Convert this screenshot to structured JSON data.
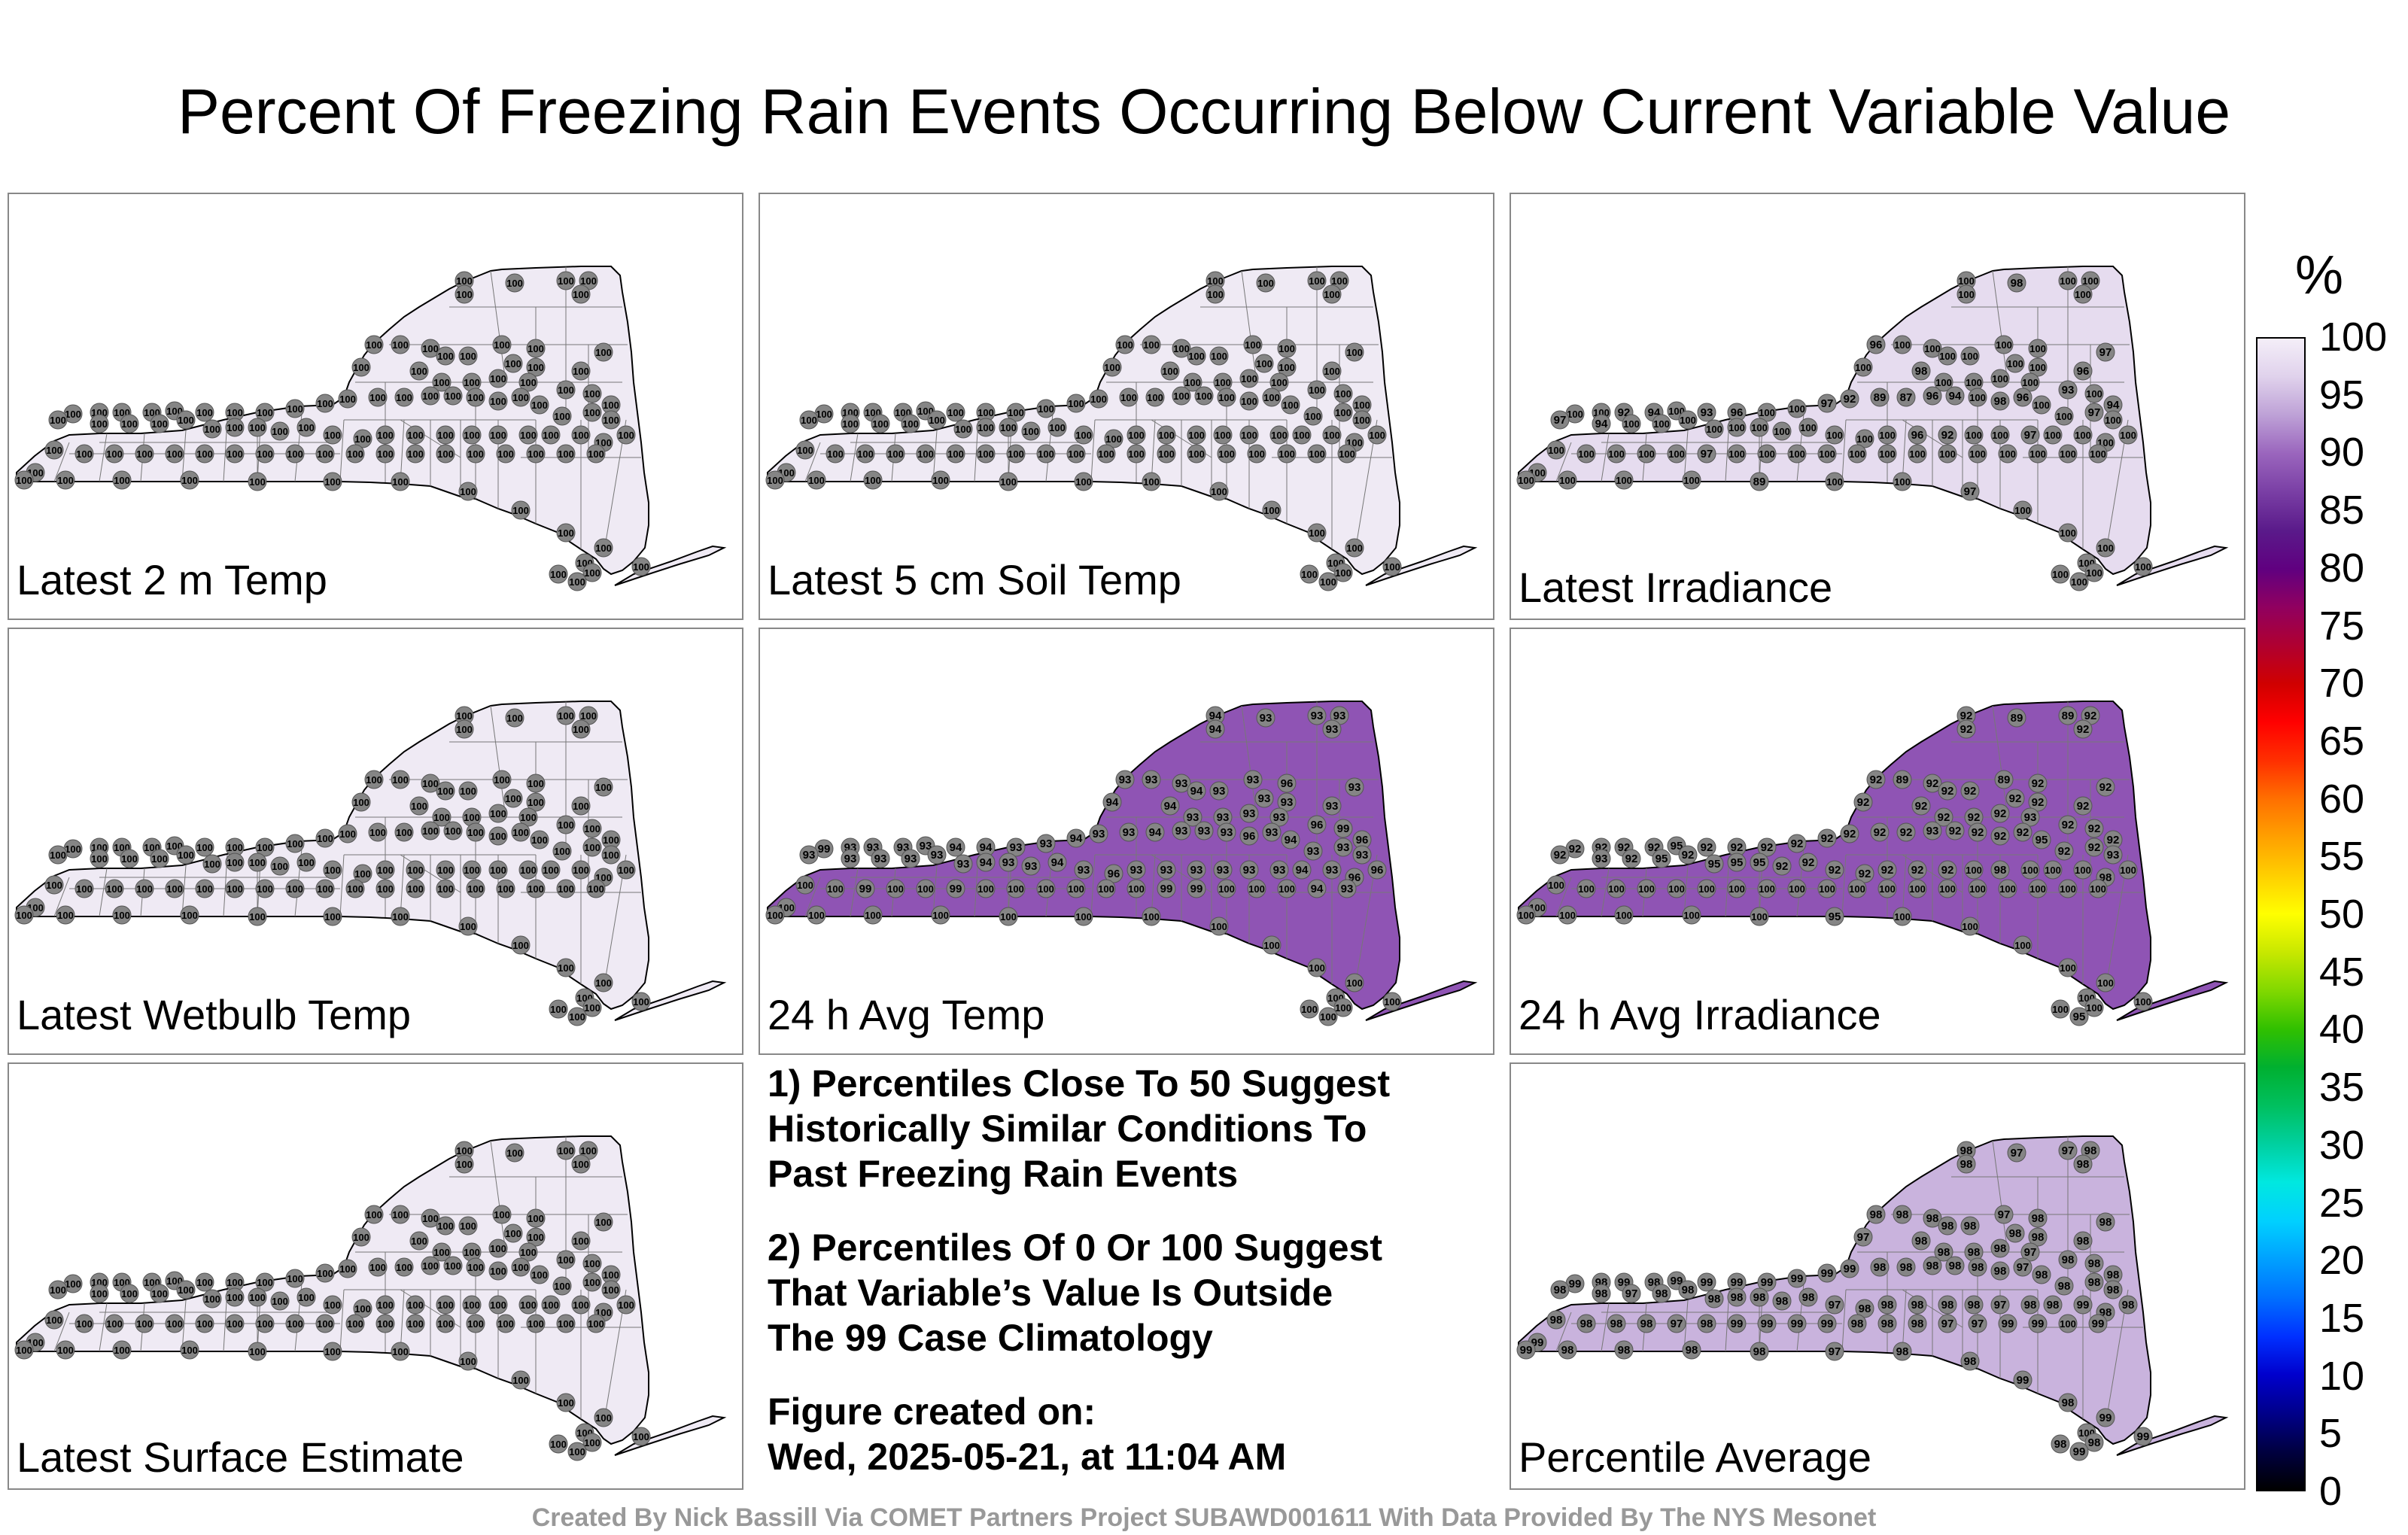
{
  "title": "Percent Of Freezing Rain Events Occurring Below Current Variable Value",
  "panels": [
    {
      "label": "Latest 2 m Temp",
      "fill": "#efeaf4",
      "values": [
        "100",
        "100",
        "100",
        "100",
        "100",
        "100",
        "100",
        "100",
        "100",
        "100",
        "100",
        "100",
        "100",
        "100",
        "100",
        "100",
        "100",
        "100",
        "100",
        "100",
        "100",
        "100",
        "100",
        "100",
        "100",
        "100",
        "100",
        "100",
        "100",
        "100",
        "100",
        "100",
        "100",
        "100",
        "100",
        "100",
        "100",
        "100",
        "100",
        "100",
        "100",
        "100",
        "100",
        "100",
        "100",
        "100",
        "100",
        "100",
        "100",
        "100",
        "100",
        "100",
        "100",
        "100",
        "100",
        "100",
        "100",
        "100",
        "100",
        "100",
        "100",
        "100",
        "100",
        "100",
        "100",
        "100",
        "100",
        "100",
        "100",
        "100",
        "100",
        "100",
        "100",
        "100",
        "100",
        "100",
        "100",
        "100",
        "100",
        "100",
        "100",
        "100",
        "100",
        "100",
        "100",
        "100",
        "100",
        "100",
        "100",
        "100",
        "100",
        "100",
        "100",
        "100",
        "100",
        "100",
        "100",
        "100",
        "100",
        "100",
        "100",
        "100",
        "100",
        "100",
        "100",
        "100"
      ]
    },
    {
      "label": "Latest 5 cm Soil Temp",
      "fill": "#efeaf4",
      "values": [
        "100",
        "100",
        "100",
        "100",
        "100",
        "100",
        "100",
        "100",
        "100",
        "100",
        "100",
        "100",
        "100",
        "100",
        "100",
        "100",
        "100",
        "100",
        "100",
        "100",
        "100",
        "100",
        "100",
        "100",
        "100",
        "100",
        "100",
        "100",
        "100",
        "100",
        "100",
        "100",
        "100",
        "100",
        "100",
        "100",
        "100",
        "100",
        "100",
        "100",
        "100",
        "100",
        "100",
        "100",
        "100",
        "100",
        "100",
        "100",
        "100",
        "100",
        "100",
        "100",
        "100",
        "100",
        "100",
        "100",
        "100",
        "100",
        "100",
        "100",
        "100",
        "100",
        "100",
        "100",
        "100",
        "100",
        "100",
        "100",
        "100",
        "100",
        "100",
        "100",
        "100",
        "100",
        "100",
        "100",
        "100",
        "100",
        "100",
        "100",
        "100",
        "100",
        "100",
        "100",
        "100",
        "100",
        "100",
        "100",
        "100",
        "100",
        "100",
        "100",
        "100",
        "100",
        "100",
        "100",
        "100",
        "100",
        "100",
        "100",
        "100",
        "100",
        "100",
        "100",
        "100",
        "100"
      ]
    },
    {
      "label": "Latest Irradiance",
      "fill": "#e6dcef",
      "values": [
        "100",
        "100",
        "98",
        "100",
        "100",
        "100",
        "100",
        "96",
        "100",
        "100",
        "100",
        "100",
        "100",
        "100",
        "100",
        "100",
        "97",
        "96",
        "98",
        "100",
        "100",
        "100",
        "100",
        "93",
        "100",
        "94",
        "100",
        "97",
        "100",
        "100",
        "96",
        "98",
        "100",
        "94",
        "96",
        "87",
        "89",
        "92",
        "97",
        "100",
        "100",
        "96",
        "93",
        "100",
        "94",
        "92",
        "100",
        "100",
        "97",
        "94",
        "100",
        "100",
        "100",
        "100",
        "100",
        "100",
        "100",
        "100",
        "100",
        "100",
        "100",
        "96",
        "92",
        "100",
        "100",
        "97",
        "100",
        "100",
        "100",
        "100",
        "100",
        "100",
        "100",
        "100",
        "100",
        "100",
        "100",
        "100",
        "100",
        "100",
        "100",
        "100",
        "100",
        "97",
        "100",
        "100",
        "100",
        "100",
        "100",
        "100",
        "100",
        "100",
        "100",
        "100",
        "89",
        "100",
        "100",
        "97",
        "100",
        "100",
        "100",
        "100",
        "100",
        "100",
        "100",
        "100"
      ]
    },
    {
      "label": "Latest Wetbulb Temp",
      "fill": "#efeaf4",
      "values": [
        "100",
        "100",
        "100",
        "100",
        "100",
        "100",
        "100",
        "100",
        "100",
        "100",
        "100",
        "100",
        "100",
        "100",
        "100",
        "100",
        "100",
        "100",
        "100",
        "100",
        "100",
        "100",
        "100",
        "100",
        "100",
        "100",
        "100",
        "100",
        "100",
        "100",
        "100",
        "100",
        "100",
        "100",
        "100",
        "100",
        "100",
        "100",
        "100",
        "100",
        "100",
        "100",
        "100",
        "100",
        "100",
        "100",
        "100",
        "100",
        "100",
        "100",
        "100",
        "100",
        "100",
        "100",
        "100",
        "100",
        "100",
        "100",
        "100",
        "100",
        "100",
        "100",
        "100",
        "100",
        "100",
        "100",
        "100",
        "100",
        "100",
        "100",
        "100",
        "100",
        "100",
        "100",
        "100",
        "100",
        "100",
        "100",
        "100",
        "100",
        "100",
        "100",
        "100",
        "100",
        "100",
        "100",
        "100",
        "100",
        "100",
        "100",
        "100",
        "100",
        "100",
        "100",
        "100",
        "100",
        "100",
        "100",
        "100",
        "100",
        "100",
        "100",
        "100",
        "100",
        "100",
        "100"
      ]
    },
    {
      "label": "24 h Avg Temp",
      "fill": "#8f54b4",
      "values": [
        "94",
        "94",
        "93",
        "93",
        "93",
        "93",
        "94",
        "93",
        "93",
        "93",
        "94",
        "93",
        "93",
        "96",
        "93",
        "93",
        "93",
        "93",
        "94",
        "93",
        "93",
        "93",
        "93",
        "96",
        "99",
        "96",
        "93",
        "93",
        "93",
        "94",
        "93",
        "96",
        "93",
        "93",
        "93",
        "94",
        "93",
        "93",
        "94",
        "93",
        "93",
        "94",
        "94",
        "93",
        "93",
        "93",
        "93",
        "99",
        "93",
        "93",
        "93",
        "93",
        "93",
        "93",
        "94",
        "93",
        "93",
        "94",
        "93",
        "96",
        "93",
        "93",
        "93",
        "93",
        "93",
        "93",
        "94",
        "93",
        "96",
        "96",
        "93",
        "94",
        "100",
        "100",
        "100",
        "99",
        "99",
        "100",
        "100",
        "100",
        "100",
        "100",
        "100",
        "99",
        "100",
        "100",
        "99",
        "100",
        "100",
        "100",
        "100",
        "100",
        "100",
        "100",
        "100",
        "100",
        "100",
        "100",
        "100",
        "100",
        "100",
        "100",
        "100",
        "100",
        "100",
        "100"
      ]
    },
    {
      "label": "24 h Avg Irradiance",
      "fill": "#8f54b4",
      "values": [
        "92",
        "92",
        "89",
        "89",
        "92",
        "92",
        "92",
        "92",
        "89",
        "92",
        "92",
        "92",
        "89",
        "92",
        "92",
        "92",
        "92",
        "92",
        "92",
        "92",
        "92",
        "92",
        "93",
        "92",
        "92",
        "92",
        "93",
        "92",
        "92",
        "95",
        "92",
        "92",
        "92",
        "92",
        "93",
        "92",
        "92",
        "92",
        "92",
        "92",
        "92",
        "92",
        "92",
        "95",
        "92",
        "92",
        "92",
        "92",
        "92",
        "93",
        "92",
        "95",
        "92",
        "95",
        "95",
        "95",
        "92",
        "92",
        "92",
        "92",
        "92",
        "92",
        "92",
        "100",
        "98",
        "100",
        "100",
        "100",
        "98",
        "100",
        "100",
        "100",
        "100",
        "100",
        "100",
        "100",
        "100",
        "100",
        "100",
        "100",
        "100",
        "100",
        "100",
        "100",
        "100",
        "100",
        "100",
        "100",
        "100",
        "100",
        "100",
        "100",
        "100",
        "100",
        "100",
        "95",
        "100",
        "100",
        "100",
        "100",
        "100",
        "100",
        "100",
        "100",
        "95",
        "100"
      ]
    },
    {
      "label": "Latest Surface Estimate",
      "fill": "#efeaf4",
      "values": [
        "100",
        "100",
        "100",
        "100",
        "100",
        "100",
        "100",
        "100",
        "100",
        "100",
        "100",
        "100",
        "100",
        "100",
        "100",
        "100",
        "100",
        "100",
        "100",
        "100",
        "100",
        "100",
        "100",
        "100",
        "100",
        "100",
        "100",
        "100",
        "100",
        "100",
        "100",
        "100",
        "100",
        "100",
        "100",
        "100",
        "100",
        "100",
        "100",
        "100",
        "100",
        "100",
        "100",
        "100",
        "100",
        "100",
        "100",
        "100",
        "100",
        "100",
        "100",
        "100",
        "100",
        "100",
        "100",
        "100",
        "100",
        "100",
        "100",
        "100",
        "100",
        "100",
        "100",
        "100",
        "100",
        "100",
        "100",
        "100",
        "100",
        "100",
        "100",
        "100",
        "100",
        "100",
        "100",
        "100",
        "100",
        "100",
        "100",
        "100",
        "100",
        "100",
        "100",
        "100",
        "100",
        "100",
        "100",
        "100",
        "100",
        "100",
        "100",
        "100",
        "100",
        "100",
        "100",
        "100",
        "100",
        "100",
        "100",
        "100",
        "100",
        "100",
        "100",
        "100",
        "100",
        "100"
      ]
    },
    {
      "label": "Percentile Average",
      "fill": "#c9b3dd",
      "values": [
        "98",
        "98",
        "97",
        "97",
        "98",
        "98",
        "97",
        "98",
        "98",
        "98",
        "98",
        "98",
        "97",
        "98",
        "98",
        "98",
        "98",
        "98",
        "98",
        "98",
        "98",
        "98",
        "97",
        "98",
        "98",
        "98",
        "98",
        "98",
        "98",
        "98",
        "97",
        "98",
        "98",
        "98",
        "98",
        "98",
        "98",
        "99",
        "99",
        "99",
        "99",
        "99",
        "99",
        "99",
        "98",
        "99",
        "98",
        "99",
        "98",
        "98",
        "97",
        "98",
        "98",
        "98",
        "98",
        "98",
        "98",
        "98",
        "97",
        "98",
        "98",
        "98",
        "98",
        "98",
        "97",
        "98",
        "98",
        "99",
        "98",
        "98",
        "99",
        "100",
        "99",
        "99",
        "97",
        "97",
        "98",
        "98",
        "98",
        "99",
        "99",
        "99",
        "99",
        "98",
        "97",
        "98",
        "98",
        "98",
        "98",
        "99",
        "99",
        "98",
        "98",
        "98",
        "98",
        "97",
        "98",
        "98",
        "99",
        "98",
        "99",
        "100",
        "98",
        "98",
        "99",
        "99"
      ]
    }
  ],
  "notes": [
    "1) Percentiles Close To 50 Suggest\nHistorically Similar Conditions To\nPast Freezing Rain Events",
    "2) Percentiles Of 0 Or 100 Suggest\nThat Variable’s Value Is Outside\nThe 99 Case Climatology",
    "Figure created on:\nWed, 2025-05-21, at 11:04 AM"
  ],
  "colorbar": {
    "unit": "%",
    "ticks": [
      "100",
      "95",
      "90",
      "85",
      "80",
      "75",
      "70",
      "65",
      "60",
      "55",
      "50",
      "45",
      "40",
      "35",
      "30",
      "25",
      "20",
      "15",
      "10",
      "5",
      "0"
    ],
    "colors": [
      "#000000",
      "#000040",
      "#00008b",
      "#0000cd",
      "#0030ff",
      "#0070ff",
      "#00a0ff",
      "#00d0ff",
      "#00e8e0",
      "#00d0a0",
      "#00c060",
      "#00b030",
      "#30c000",
      "#80d800",
      "#c8e800",
      "#ffff00",
      "#ffd000",
      "#ffa000",
      "#ff7000",
      "#ff3000",
      "#ff0000",
      "#d00000",
      "#b00030",
      "#900060",
      "#600080",
      "#5a1a8a",
      "#7a3fa5",
      "#9a65bd",
      "#bda0d6",
      "#e0d2ec",
      "#f4eef8"
    ]
  },
  "credit": "Created By Nick Bassill Via COMET Partners Project SUBAWD001611 With Data Provided By The NYS Mesonet"
}
